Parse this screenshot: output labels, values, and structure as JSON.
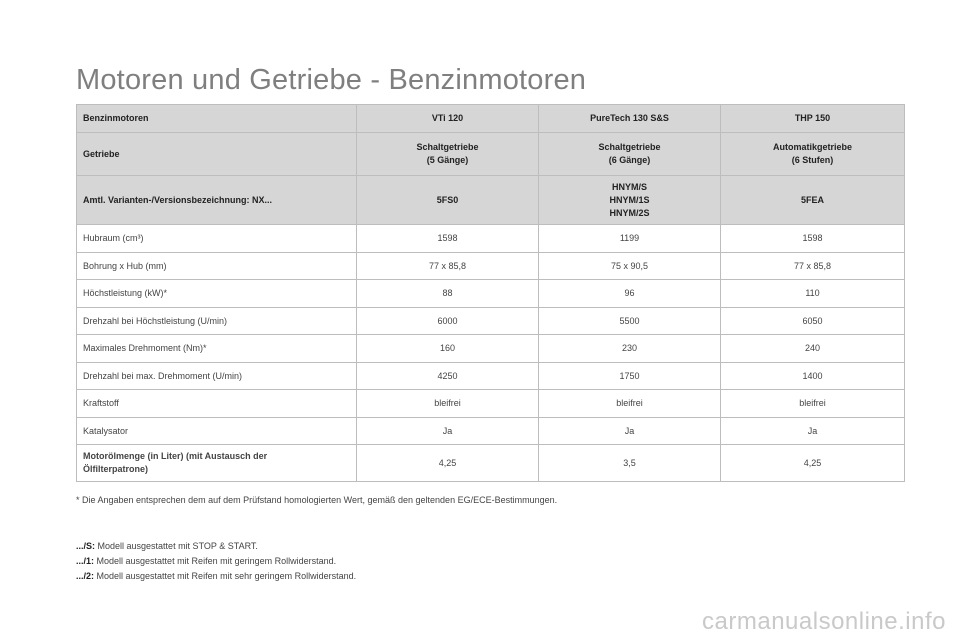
{
  "page": {
    "title": "Motoren und Getriebe - Benzinmotoren"
  },
  "table": {
    "header_rows": [
      {
        "cells": [
          [
            "Benzinmotoren"
          ],
          [
            "VTi 120"
          ],
          [
            "PureTech 130 S&S"
          ],
          [
            "THP 150"
          ]
        ]
      },
      {
        "cells": [
          [
            "Getriebe"
          ],
          [
            "Schaltgetriebe",
            "(5 Gänge)"
          ],
          [
            "Schaltgetriebe",
            "(6 Gänge)"
          ],
          [
            "Automatikgetriebe",
            "(6 Stufen)"
          ]
        ]
      },
      {
        "cells": [
          [
            "Amtl. Varianten-/Versionsbezeichnung: NX..."
          ],
          [
            "5FS0"
          ],
          [
            "HNYM/S",
            "HNYM/1S",
            "HNYM/2S"
          ],
          [
            "5FEA"
          ]
        ]
      }
    ],
    "rows": [
      {
        "label": [
          "Hubraum (cm³)"
        ],
        "values": [
          "1598",
          "1199",
          "1598"
        ]
      },
      {
        "label": [
          "Bohrung x Hub (mm)"
        ],
        "values": [
          "77 x 85,8",
          "75 x 90,5",
          "77 x 85,8"
        ]
      },
      {
        "label": [
          "Höchstleistung (kW)*"
        ],
        "values": [
          "88",
          "96",
          "110"
        ]
      },
      {
        "label": [
          "Drehzahl bei Höchstleistung (U/min)"
        ],
        "values": [
          "6000",
          "5500",
          "6050"
        ]
      },
      {
        "label": [
          "Maximales Drehmoment (Nm)*"
        ],
        "values": [
          "160",
          "230",
          "240"
        ]
      },
      {
        "label": [
          "Drehzahl bei max. Drehmoment (U/min)"
        ],
        "values": [
          "4250",
          "1750",
          "1400"
        ]
      },
      {
        "label": [
          "Kraftstoff"
        ],
        "values": [
          "bleifrei",
          "bleifrei",
          "bleifrei"
        ]
      },
      {
        "label": [
          "Katalysator"
        ],
        "values": [
          "Ja",
          "Ja",
          "Ja"
        ]
      },
      {
        "label": [
          "Motorölmenge (in Liter) (mit Austausch der",
          "Ölfilterpatrone)"
        ],
        "values": [
          "4,25",
          "3,5",
          "4,25"
        ],
        "bold_label": true
      }
    ]
  },
  "footnote": "* Die Angaben entsprechen dem auf dem Prüfstand homologierten Wert, gemäß den geltenden EG/ECE-Bestimmungen.",
  "notes": [
    {
      "key": ".../S:",
      "text": " Modell ausgestattet mit STOP & START."
    },
    {
      "key": ".../1:",
      "text": " Modell ausgestattet mit Reifen mit geringem Rollwiderstand."
    },
    {
      "key": ".../2:",
      "text": " Modell ausgestattet mit Reifen mit sehr geringem Rollwiderstand."
    }
  ],
  "watermark": "carmanualsonline.info"
}
